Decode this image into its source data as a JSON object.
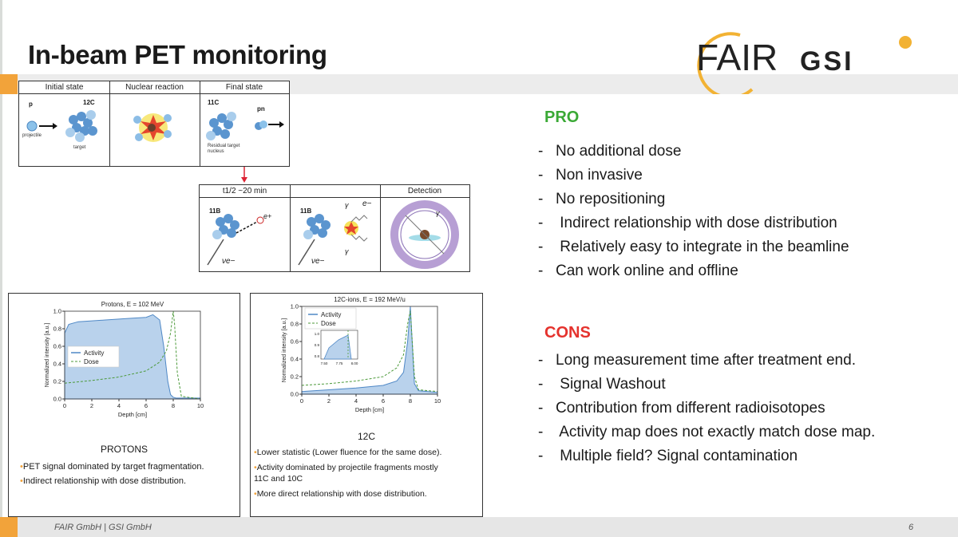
{
  "slide": {
    "title": "In-beam PET monitoring",
    "logo": {
      "fair": "FAIR",
      "gsi": "GSI"
    },
    "page_number": "6",
    "footer": "FAIR GmbH | GSI GmbH"
  },
  "reaction_figure": {
    "headers": [
      "Initial state",
      "Nuclear reaction",
      "Final state"
    ],
    "initial": {
      "projectile_label": "p",
      "projectile_caption": "projectile",
      "target_label": "12C",
      "target_caption": "target"
    },
    "final": {
      "nucleus_label": "11C",
      "nucleus_caption": "Residual target nucleus",
      "emitted_label": "pn"
    },
    "decay_headers": [
      "t1/2 ~20 min",
      "",
      "Detection"
    ],
    "decay": {
      "nucleus_a": "11B",
      "nucleus_b": "11B",
      "positron": "e+",
      "electron": "e−",
      "neutrino": "νe−",
      "gamma": "γ"
    }
  },
  "pro": {
    "heading": "PRO",
    "color": "#3aa935",
    "items": [
      "No additional dose",
      "Non invasive",
      "No repositioning",
      " Indirect relationship with dose distribution",
      " Relatively easy to integrate in the beamline",
      "Can work online and offline"
    ]
  },
  "cons": {
    "heading": "CONS",
    "color": "#e5322d",
    "items": [
      "Long measurement time after treatment end.",
      " Signal Washout",
      "Contribution from different radioisotopes",
      " Activity map does not exactly match dose map.",
      " Multiple field? Signal contamination"
    ]
  },
  "protons_panel": {
    "title": "PROTONS",
    "bullets": [
      "PET signal dominated by target fragmentation.",
      "Indirect relationship with dose distribution."
    ]
  },
  "carbon_panel": {
    "title": "12C",
    "bullets": [
      "Lower statistic (Lower fluence for the same dose).",
      "Activity dominated by projectile fragments mostly",
      "11C and 10C",
      "More direct relationship with dose distribution."
    ]
  },
  "chart_data": [
    {
      "type": "area",
      "title": "Protons, E = 102 MeV",
      "xlabel": "Depth [cm]",
      "ylabel": "Normalized intensity [a.u.]",
      "xlim": [
        0,
        10
      ],
      "ylim": [
        0,
        1.0
      ],
      "xticks": [
        "0",
        "2",
        "4",
        "6",
        "8",
        "10"
      ],
      "yticks": [
        "0.0",
        "0.2",
        "0.4",
        "0.6",
        "0.8",
        "1.0"
      ],
      "legend": "center-left",
      "series": [
        {
          "name": "Activity",
          "style": "filled",
          "x": [
            0,
            0.3,
            1,
            2,
            3,
            4,
            5,
            6,
            6.5,
            7.0,
            7.3,
            7.6,
            7.8,
            8.0,
            8.2,
            10
          ],
          "y": [
            0.75,
            0.85,
            0.88,
            0.89,
            0.9,
            0.91,
            0.92,
            0.93,
            0.96,
            0.9,
            0.6,
            0.2,
            0.05,
            0.02,
            0.01,
            0.01
          ]
        },
        {
          "name": "Dose",
          "style": "dashed",
          "x": [
            0,
            2,
            4,
            6,
            7,
            7.5,
            7.8,
            8.0,
            8.1,
            8.3,
            8.6,
            10
          ],
          "y": [
            0.18,
            0.21,
            0.25,
            0.32,
            0.42,
            0.55,
            0.75,
            1.0,
            0.85,
            0.3,
            0.03,
            0.0
          ]
        }
      ]
    },
    {
      "type": "area",
      "title": "12C-ions, E = 192 MeV/u",
      "xlabel": "Depth [cm]",
      "ylabel": "Normalized intensity [a.u.]",
      "xlim": [
        0,
        10
      ],
      "ylim": [
        0,
        1.0
      ],
      "xticks": [
        "0",
        "2",
        "4",
        "6",
        "8",
        "10"
      ],
      "yticks": [
        "0.0",
        "0.2",
        "0.4",
        "0.6",
        "0.8",
        "1.0"
      ],
      "legend": "top-left",
      "inset": {
        "xticks": [
          "7.50",
          "7.75",
          "8.00"
        ],
        "yticks": [
          "0.8",
          "0.9",
          "1.0"
        ]
      },
      "series": [
        {
          "name": "Activity",
          "style": "filled",
          "x": [
            0,
            2,
            4,
            6,
            7,
            7.5,
            7.8,
            8.0,
            8.1,
            8.3,
            8.6,
            10
          ],
          "y": [
            0.03,
            0.05,
            0.07,
            0.1,
            0.15,
            0.25,
            0.6,
            1.0,
            0.7,
            0.12,
            0.04,
            0.02
          ]
        },
        {
          "name": "Dose",
          "style": "dashed",
          "x": [
            0,
            2,
            4,
            6,
            7,
            7.5,
            7.8,
            8.0,
            8.1,
            8.3,
            8.6,
            10
          ],
          "y": [
            0.1,
            0.12,
            0.15,
            0.2,
            0.3,
            0.45,
            0.8,
            0.95,
            0.7,
            0.2,
            0.05,
            0.03
          ]
        }
      ]
    }
  ]
}
